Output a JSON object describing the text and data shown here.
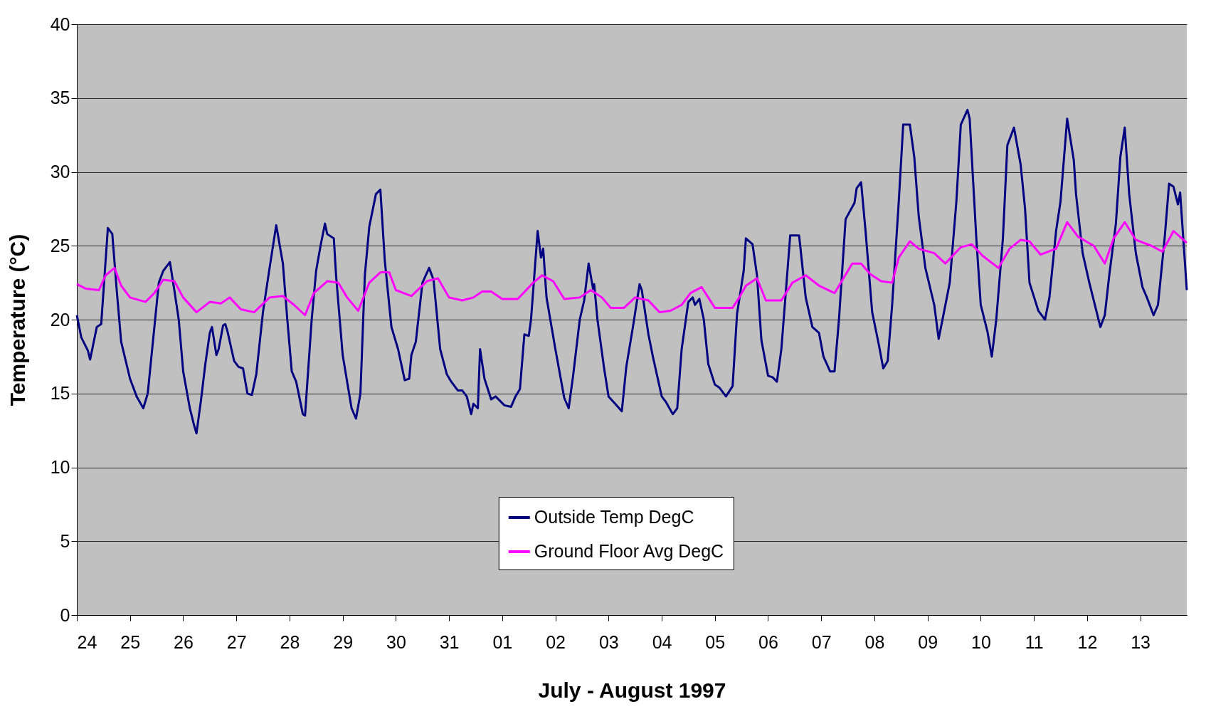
{
  "chart_data": {
    "type": "line",
    "xlabel": "July - August 1997",
    "ylabel": "Temperature (°C)",
    "xlim": [
      "1997-07-24",
      "1997-08-13T21:00"
    ],
    "ylim": [
      0,
      40
    ],
    "yticks": [
      0,
      5,
      10,
      15,
      20,
      25,
      30,
      35,
      40
    ],
    "xticks": [
      {
        "value": "1997-07-24",
        "label": "24"
      },
      {
        "value": "1997-07-25",
        "label": "25"
      },
      {
        "value": "1997-07-26",
        "label": "26"
      },
      {
        "value": "1997-07-27",
        "label": "27"
      },
      {
        "value": "1997-07-28",
        "label": "28"
      },
      {
        "value": "1997-07-29",
        "label": "29"
      },
      {
        "value": "1997-07-30",
        "label": "30"
      },
      {
        "value": "1997-07-31",
        "label": "31"
      },
      {
        "value": "1997-08-01",
        "label": "01"
      },
      {
        "value": "1997-08-02",
        "label": "02"
      },
      {
        "value": "1997-08-03",
        "label": "03"
      },
      {
        "value": "1997-08-04",
        "label": "04"
      },
      {
        "value": "1997-08-05",
        "label": "05"
      },
      {
        "value": "1997-08-06",
        "label": "06"
      },
      {
        "value": "1997-08-07",
        "label": "07"
      },
      {
        "value": "1997-08-08",
        "label": "08"
      },
      {
        "value": "1997-08-09",
        "label": "09"
      },
      {
        "value": "1997-08-10",
        "label": "10"
      },
      {
        "value": "1997-08-11",
        "label": "11"
      },
      {
        "value": "1997-08-12",
        "label": "12"
      },
      {
        "value": "1997-08-13",
        "label": "13"
      }
    ],
    "grid": "y",
    "legend": "bottom",
    "marker": "none",
    "line_style": "solid",
    "series": [
      {
        "name": "Outside Temp DegC",
        "color": "#000080",
        "x": [
          "1997-07-24T00:00",
          "1997-07-24T02:00",
          "1997-07-24T05:00",
          "1997-07-24T06:00",
          "1997-07-24T09:00",
          "1997-07-24T11:00",
          "1997-07-24T14:00",
          "1997-07-24T16:00",
          "1997-07-24T18:00",
          "1997-07-24T20:00",
          "1997-07-25T00:00",
          "1997-07-25T03:00",
          "1997-07-25T06:00",
          "1997-07-25T08:00",
          "1997-07-25T11:00",
          "1997-07-25T13:00",
          "1997-07-25T15:00",
          "1997-07-25T18:00",
          "1997-07-25T20:00",
          "1997-07-25T22:00",
          "1997-07-26T00:00",
          "1997-07-26T03:00",
          "1997-07-26T05:00",
          "1997-07-26T06:00",
          "1997-07-26T08:00",
          "1997-07-26T10:00",
          "1997-07-26T12:00",
          "1997-07-26T13:00",
          "1997-07-26T15:00",
          "1997-07-26T16:00",
          "1997-07-26T18:00",
          "1997-07-26T19:00",
          "1997-07-26T20:00",
          "1997-07-26T23:00",
          "1997-07-27T01:00",
          "1997-07-27T03:00",
          "1997-07-27T05:00",
          "1997-07-27T07:00",
          "1997-07-27T09:00",
          "1997-07-27T12:00",
          "1997-07-27T15:00",
          "1997-07-27T18:00",
          "1997-07-27T21:00",
          "1997-07-27T23:00",
          "1997-07-28T01:00",
          "1997-07-28T03:00",
          "1997-07-28T06:00",
          "1997-07-28T07:00",
          "1997-07-28T10:00",
          "1997-07-28T12:00",
          "1997-07-28T14:00",
          "1997-07-28T16:00",
          "1997-07-28T17:00",
          "1997-07-28T20:00",
          "1997-07-28T21:00",
          "1997-07-29T00:00",
          "1997-07-29T04:00",
          "1997-07-29T06:00",
          "1997-07-29T08:00",
          "1997-07-29T10:00",
          "1997-07-29T12:00",
          "1997-07-29T15:00",
          "1997-07-29T17:00",
          "1997-07-29T19:00",
          "1997-07-29T22:00",
          "1997-07-30T01:00",
          "1997-07-30T04:00",
          "1997-07-30T06:00",
          "1997-07-30T07:00",
          "1997-07-30T09:00",
          "1997-07-30T12:00",
          "1997-07-30T15:00",
          "1997-07-30T17:00",
          "1997-07-30T20:00",
          "1997-07-30T23:00",
          "1997-07-31T01:00",
          "1997-07-31T04:00",
          "1997-07-31T06:00",
          "1997-07-31T08:00",
          "1997-07-31T10:00",
          "1997-07-31T11:00",
          "1997-07-31T13:00",
          "1997-07-31T14:00",
          "1997-07-31T16:00",
          "1997-07-31T19:00",
          "1997-07-31T21:00",
          "1997-07-31T23:00",
          "1997-08-01T01:00",
          "1997-08-01T04:00",
          "1997-08-01T06:00",
          "1997-08-01T08:00",
          "1997-08-01T10:00",
          "1997-08-01T12:00",
          "1997-08-01T13:00",
          "1997-08-01T16:00",
          "1997-08-01T17:30",
          "1997-08-01T18:30",
          "1997-08-01T20:00",
          "1997-08-02T00:00",
          "1997-08-02T04:00",
          "1997-08-02T06:00",
          "1997-08-02T08:00",
          "1997-08-02T11:00",
          "1997-08-02T13:00",
          "1997-08-02T15:00",
          "1997-08-02T17:00",
          "1997-08-02T17:30",
          "1997-08-02T19:00",
          "1997-08-02T22:00",
          "1997-08-03T00:00",
          "1997-08-03T03:00",
          "1997-08-03T06:00",
          "1997-08-03T08:00",
          "1997-08-03T11:00",
          "1997-08-03T14:00",
          "1997-08-03T15:00",
          "1997-08-03T18:00",
          "1997-08-03T20:00",
          "1997-08-04T00:00",
          "1997-08-04T02:00",
          "1997-08-04T05:00",
          "1997-08-04T07:00",
          "1997-08-04T09:00",
          "1997-08-04T12:00",
          "1997-08-04T14:00",
          "1997-08-04T15:00",
          "1997-08-04T17:00",
          "1997-08-04T19:00",
          "1997-08-04T21:00",
          "1997-08-05T00:00",
          "1997-08-05T02:00",
          "1997-08-05T05:00",
          "1997-08-05T08:00",
          "1997-08-05T10:00",
          "1997-08-05T13:00",
          "1997-08-05T14:00",
          "1997-08-05T17:00",
          "1997-08-05T19:00",
          "1997-08-05T21:00",
          "1997-08-06T00:00",
          "1997-08-06T02:00",
          "1997-08-06T04:00",
          "1997-08-06T06:00",
          "1997-08-06T10:00",
          "1997-08-06T14:00",
          "1997-08-06T17:00",
          "1997-08-06T20:00",
          "1997-08-06T23:00",
          "1997-08-07T01:00",
          "1997-08-07T04:00",
          "1997-08-07T06:00",
          "1997-08-07T08:00",
          "1997-08-07T11:00",
          "1997-08-07T15:00",
          "1997-08-07T16:00",
          "1997-08-07T18:00",
          "1997-08-07T20:00",
          "1997-08-07T23:00",
          "1997-08-08T02:00",
          "1997-08-08T04:00",
          "1997-08-08T06:00",
          "1997-08-08T08:00",
          "1997-08-08T11:00",
          "1997-08-08T13:00",
          "1997-08-08T16:00",
          "1997-08-08T18:00",
          "1997-08-08T20:00",
          "1997-08-08T23:00",
          "1997-08-09T03:00",
          "1997-08-09T05:00",
          "1997-08-09T07:00",
          "1997-08-09T10:00",
          "1997-08-09T13:00",
          "1997-08-09T15:00",
          "1997-08-09T18:00",
          "1997-08-09T19:00",
          "1997-08-09T22:00",
          "1997-08-10T00:00",
          "1997-08-10T03:00",
          "1997-08-10T05:00",
          "1997-08-10T07:00",
          "1997-08-10T10:00",
          "1997-08-10T12:00",
          "1997-08-10T15:00",
          "1997-08-10T18:00",
          "1997-08-10T20:00",
          "1997-08-10T22:00",
          "1997-08-11T02:00",
          "1997-08-11T05:00",
          "1997-08-11T07:00",
          "1997-08-11T10:00",
          "1997-08-11T12:00",
          "1997-08-11T15:00",
          "1997-08-11T18:00",
          "1997-08-11T19:00",
          "1997-08-11T22:00",
          "1997-08-12T01:00",
          "1997-08-12T06:00",
          "1997-08-12T08:00",
          "1997-08-12T10:00",
          "1997-08-12T13:00",
          "1997-08-12T15:00",
          "1997-08-12T17:00",
          "1997-08-12T19:00",
          "1997-08-12T22:00",
          "1997-08-13T01:00",
          "1997-08-13T03:00",
          "1997-08-13T06:00",
          "1997-08-13T08:00",
          "1997-08-13T11:00",
          "1997-08-13T13:00",
          "1997-08-13T15:00",
          "1997-08-13T17:00",
          "1997-08-13T18:00",
          "1997-08-13T21:00"
        ],
        "values": [
          20.3,
          18.8,
          17.9,
          17.3,
          19.5,
          19.7,
          26.2,
          25.8,
          22,
          18.5,
          16,
          14.8,
          14,
          15,
          19.5,
          22.5,
          23.3,
          23.9,
          22,
          20,
          16.5,
          14,
          12.8,
          12.3,
          14.5,
          17,
          19.1,
          19.5,
          17.6,
          18,
          19.6,
          19.7,
          19.2,
          17.2,
          16.8,
          16.7,
          15,
          14.9,
          16.3,
          20.5,
          23.5,
          26.4,
          23.8,
          20,
          16.5,
          15.8,
          13.6,
          13.5,
          20,
          23.3,
          25,
          26.5,
          25.8,
          25.5,
          23,
          17.6,
          14,
          13.3,
          15,
          23,
          26.3,
          28.5,
          28.8,
          24,
          19.5,
          18,
          15.9,
          16,
          17.6,
          18.5,
          22.5,
          23.5,
          22.7,
          18,
          16.3,
          15.8,
          15.2,
          15.2,
          14.8,
          13.6,
          14.3,
          14,
          18,
          16,
          14.6,
          14.8,
          14.5,
          14.2,
          14.1,
          14.8,
          15.3,
          19,
          18.9,
          20,
          26,
          24.2,
          24.8,
          21.5,
          18,
          14.7,
          14,
          16.2,
          20,
          21.3,
          23.8,
          22.1,
          22.4,
          20,
          16.7,
          14.8,
          14.3,
          13.8,
          16.8,
          19.5,
          22.4,
          22,
          19,
          17.5,
          14.8,
          14.4,
          13.6,
          14,
          18,
          21.2,
          21.5,
          21,
          21.4,
          20,
          17,
          15.6,
          15.4,
          14.8,
          15.5,
          20.4,
          23.3,
          25.5,
          25.1,
          23,
          18.6,
          16.2,
          16.1,
          15.8,
          18,
          25.7,
          25.7,
          21.5,
          19.5,
          19.1,
          17.5,
          16.5,
          16.5,
          20,
          26.8,
          27.9,
          28.9,
          29.3,
          26,
          20.5,
          18.3,
          16.7,
          17.2,
          21,
          28,
          33.2,
          33.2,
          31,
          27,
          23.5,
          21,
          18.7,
          20.2,
          22.5,
          28,
          33.2,
          34.2,
          33.6,
          25.5,
          21,
          19.2,
          17.5,
          20,
          25.5,
          31.8,
          33,
          30.5,
          27.5,
          22.5,
          20.6,
          20,
          21.5,
          26,
          28,
          33.6,
          30.8,
          28.5,
          24.5,
          22.5,
          19.5,
          20.3,
          23,
          26.5,
          31,
          33,
          28.5,
          24.5,
          22.2,
          21.5,
          20.3,
          21,
          25.5,
          29.2,
          29,
          27.8,
          28.6,
          22
        ]
      },
      {
        "name": "Ground Floor Avg DegC",
        "color": "#ff00ff",
        "x": [
          "1997-07-24T00:00",
          "1997-07-24T04:00",
          "1997-07-24T10:00",
          "1997-07-24T13:00",
          "1997-07-24T17:00",
          "1997-07-24T20:00",
          "1997-07-25T00:00",
          "1997-07-25T07:00",
          "1997-07-25T11:00",
          "1997-07-25T15:00",
          "1997-07-25T20:00",
          "1997-07-26T00:00",
          "1997-07-26T06:00",
          "1997-07-26T12:00",
          "1997-07-26T17:00",
          "1997-07-26T21:00",
          "1997-07-27T02:00",
          "1997-07-27T08:00",
          "1997-07-27T15:00",
          "1997-07-27T21:00",
          "1997-07-28T02:00",
          "1997-07-28T07:00",
          "1997-07-28T11:00",
          "1997-07-28T17:00",
          "1997-07-28T22:00",
          "1997-07-29T02:00",
          "1997-07-29T07:00",
          "1997-07-29T12:00",
          "1997-07-29T17:00",
          "1997-07-29T21:00",
          "1997-07-30T00:00",
          "1997-07-30T07:00",
          "1997-07-30T14:00",
          "1997-07-30T19:00",
          "1997-07-31T00:00",
          "1997-07-31T06:00",
          "1997-07-31T11:00",
          "1997-07-31T15:00",
          "1997-07-31T19:00",
          "1997-08-01T00:00",
          "1997-08-01T07:00",
          "1997-08-01T14:00",
          "1997-08-01T18:00",
          "1997-08-01T23:00",
          "1997-08-02T04:00",
          "1997-08-02T11:00",
          "1997-08-02T16:00",
          "1997-08-02T21:00",
          "1997-08-03T01:00",
          "1997-08-03T07:00",
          "1997-08-03T12:00",
          "1997-08-03T18:00",
          "1997-08-03T23:00",
          "1997-08-04T04:00",
          "1997-08-04T09:00",
          "1997-08-04T13:00",
          "1997-08-04T18:00",
          "1997-08-05T00:00",
          "1997-08-05T08:00",
          "1997-08-05T11:00",
          "1997-08-05T14:00",
          "1997-08-05T19:00",
          "1997-08-05T23:00",
          "1997-08-06T06:00",
          "1997-08-06T11:00",
          "1997-08-06T17:00",
          "1997-08-06T23:00",
          "1997-08-07T06:00",
          "1997-08-07T14:00",
          "1997-08-07T18:00",
          "1997-08-07T22:00",
          "1997-08-08T03:00",
          "1997-08-08T08:00",
          "1997-08-08T11:00",
          "1997-08-08T16:00",
          "1997-08-08T20:00",
          "1997-08-09T03:00",
          "1997-08-09T08:00",
          "1997-08-09T15:00",
          "1997-08-09T20:00",
          "1997-08-10T01:00",
          "1997-08-10T08:00",
          "1997-08-10T13:00",
          "1997-08-10T18:00",
          "1997-08-10T22:00",
          "1997-08-11T03:00",
          "1997-08-11T10:00",
          "1997-08-11T15:00",
          "1997-08-11T20:00",
          "1997-08-12T03:00",
          "1997-08-12T08:00",
          "1997-08-12T12:00",
          "1997-08-12T17:00",
          "1997-08-12T22:00",
          "1997-08-13T05:00",
          "1997-08-13T10:00",
          "1997-08-13T15:00",
          "1997-08-13T21:00"
        ],
        "values": [
          22.4,
          22.1,
          22,
          23,
          23.5,
          22.3,
          21.5,
          21.2,
          21.8,
          22.7,
          22.6,
          21.5,
          20.5,
          21.2,
          21.1,
          21.5,
          20.7,
          20.5,
          21.5,
          21.6,
          21,
          20.3,
          21.8,
          22.6,
          22.5,
          21.5,
          20.6,
          22.5,
          23.2,
          23.2,
          22,
          21.6,
          22.6,
          22.8,
          21.5,
          21.3,
          21.5,
          21.9,
          21.9,
          21.4,
          21.4,
          22.5,
          23,
          22.6,
          21.4,
          21.5,
          22,
          21.5,
          20.8,
          20.8,
          21.5,
          21.3,
          20.5,
          20.6,
          21,
          21.8,
          22.2,
          20.8,
          20.8,
          21.5,
          22.3,
          22.8,
          21.3,
          21.3,
          22.5,
          23,
          22.3,
          21.8,
          23.8,
          23.8,
          23.1,
          22.6,
          22.5,
          24.2,
          25.3,
          24.8,
          24.5,
          23.8,
          24.9,
          25.1,
          24.3,
          23.5,
          24.8,
          25.4,
          25.3,
          24.4,
          24.8,
          26.6,
          25.6,
          25,
          23.8,
          25.5,
          26.6,
          25.4,
          25,
          24.6,
          26,
          25.2
        ]
      }
    ]
  }
}
